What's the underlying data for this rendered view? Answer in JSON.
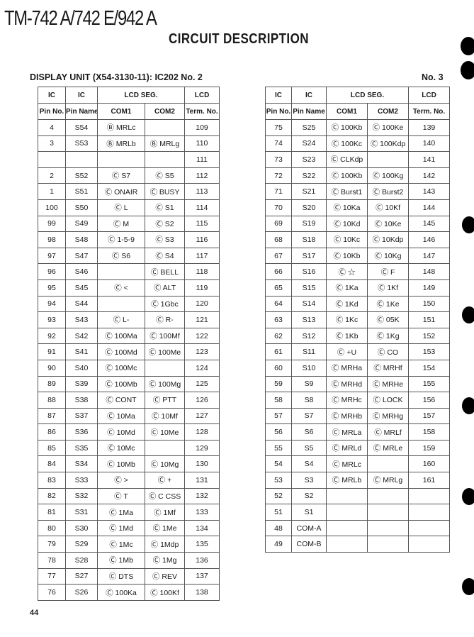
{
  "header": {
    "model": "TM-742 A/742 E/942 A",
    "section": "CIRCUIT DESCRIPTION"
  },
  "left_caption": "DISPLAY UNIT (X54-3130-11): IC202 No. 2",
  "right_caption": "No. 3",
  "columns": {
    "ic": "IC",
    "pin_no": "Pin No.",
    "pin_name": "Pin Name",
    "lcd_seg": "LCD SEG.",
    "com1": "COM1",
    "com2": "COM2",
    "lcd": "LCD",
    "term_no": "Term. No."
  },
  "left_rows": [
    [
      "4",
      "S54",
      "Ⓑ MRLc",
      "",
      "109"
    ],
    [
      "3",
      "S53",
      "Ⓑ MRLb",
      "Ⓑ MRLg",
      "110"
    ],
    [
      "",
      "",
      "",
      "",
      "111"
    ],
    [
      "2",
      "S52",
      "Ⓒ S7",
      "Ⓒ S5",
      "112"
    ],
    [
      "1",
      "S51",
      "Ⓒ ONAIR",
      "Ⓒ BUSY",
      "113"
    ],
    [
      "100",
      "S50",
      "Ⓒ L",
      "Ⓒ S1",
      "114"
    ],
    [
      "99",
      "S49",
      "Ⓒ M",
      "Ⓒ S2",
      "115"
    ],
    [
      "98",
      "S48",
      "Ⓒ 1-5-9",
      "Ⓒ S3",
      "116"
    ],
    [
      "97",
      "S47",
      "Ⓒ S6",
      "Ⓒ S4",
      "117"
    ],
    [
      "96",
      "S46",
      "",
      "Ⓒ BELL",
      "118"
    ],
    [
      "95",
      "S45",
      "Ⓒ <",
      "Ⓒ ALT",
      "119"
    ],
    [
      "94",
      "S44",
      "",
      "Ⓒ 1Gbc",
      "120"
    ],
    [
      "93",
      "S43",
      "Ⓒ L-",
      "Ⓒ R-",
      "121"
    ],
    [
      "92",
      "S42",
      "Ⓒ 100Ma",
      "Ⓒ 100Mf",
      "122"
    ],
    [
      "91",
      "S41",
      "Ⓒ 100Md",
      "Ⓒ 100Me",
      "123"
    ],
    [
      "90",
      "S40",
      "Ⓒ 100Mc",
      "",
      "124"
    ],
    [
      "89",
      "S39",
      "Ⓒ 100Mb",
      "Ⓒ 100Mg",
      "125"
    ],
    [
      "88",
      "S38",
      "Ⓒ CONT",
      "Ⓒ PTT",
      "126"
    ],
    [
      "87",
      "S37",
      "Ⓒ 10Ma",
      "Ⓒ 10Mf",
      "127"
    ],
    [
      "86",
      "S36",
      "Ⓒ 10Md",
      "Ⓒ 10Me",
      "128"
    ],
    [
      "85",
      "S35",
      "Ⓒ 10Mc",
      "",
      "129"
    ],
    [
      "84",
      "S34",
      "Ⓒ 10Mb",
      "Ⓒ 10Mg",
      "130"
    ],
    [
      "83",
      "S33",
      "Ⓒ >",
      "Ⓒ +",
      "131"
    ],
    [
      "82",
      "S32",
      "Ⓒ T",
      "Ⓒ C CSS",
      "132"
    ],
    [
      "81",
      "S31",
      "Ⓒ 1Ma",
      "Ⓒ 1Mf",
      "133"
    ],
    [
      "80",
      "S30",
      "Ⓒ 1Md",
      "Ⓒ 1Me",
      "134"
    ],
    [
      "79",
      "S29",
      "Ⓒ 1Mc",
      "Ⓒ 1Mdp",
      "135"
    ],
    [
      "78",
      "S28",
      "Ⓒ 1Mb",
      "Ⓒ 1Mg",
      "136"
    ],
    [
      "77",
      "S27",
      "Ⓒ DTS",
      "Ⓒ REV",
      "137"
    ],
    [
      "76",
      "S26",
      "Ⓒ 100Ka",
      "Ⓒ 100Kf",
      "138"
    ]
  ],
  "right_rows": [
    [
      "75",
      "S25",
      "Ⓒ 100Kb",
      "Ⓒ 100Ke",
      "139"
    ],
    [
      "74",
      "S24",
      "Ⓒ 100Kc",
      "Ⓒ 100Kdp",
      "140"
    ],
    [
      "73",
      "S23",
      "Ⓒ CLKdp",
      "",
      "141"
    ],
    [
      "72",
      "S22",
      "Ⓒ 100Kb",
      "Ⓒ 100Kg",
      "142"
    ],
    [
      "71",
      "S21",
      "Ⓒ Burst1",
      "Ⓒ Burst2",
      "143"
    ],
    [
      "70",
      "S20",
      "Ⓒ 10Ka",
      "Ⓒ 10Kf",
      "144"
    ],
    [
      "69",
      "S19",
      "Ⓒ 10Kd",
      "Ⓒ 10Ke",
      "145"
    ],
    [
      "68",
      "S18",
      "Ⓒ 10Kc",
      "Ⓒ 10Kdp",
      "146"
    ],
    [
      "67",
      "S17",
      "Ⓒ 10Kb",
      "Ⓒ 10Kg",
      "147"
    ],
    [
      "66",
      "S16",
      "Ⓒ ☆",
      "Ⓒ F",
      "148"
    ],
    [
      "65",
      "S15",
      "Ⓒ 1Ka",
      "Ⓒ 1Kf",
      "149"
    ],
    [
      "64",
      "S14",
      "Ⓒ 1Kd",
      "Ⓒ 1Ke",
      "150"
    ],
    [
      "63",
      "S13",
      "Ⓒ 1Kc",
      "Ⓒ 05K",
      "151"
    ],
    [
      "62",
      "S12",
      "Ⓒ 1Kb",
      "Ⓒ 1Kg",
      "152"
    ],
    [
      "61",
      "S11",
      "Ⓒ +U",
      "Ⓒ CO",
      "153"
    ],
    [
      "60",
      "S10",
      "Ⓒ MRHa",
      "Ⓒ MRHf",
      "154"
    ],
    [
      "59",
      "S9",
      "Ⓒ MRHd",
      "Ⓒ MRHe",
      "155"
    ],
    [
      "58",
      "S8",
      "Ⓒ MRHc",
      "Ⓒ LOCK",
      "156"
    ],
    [
      "57",
      "S7",
      "Ⓒ MRHb",
      "Ⓒ MRHg",
      "157"
    ],
    [
      "56",
      "S6",
      "Ⓒ MRLa",
      "Ⓒ MRLf",
      "158"
    ],
    [
      "55",
      "S5",
      "Ⓒ MRLd",
      "Ⓒ MRLe",
      "159"
    ],
    [
      "54",
      "S4",
      "Ⓒ MRLc",
      "",
      "160"
    ],
    [
      "53",
      "S3",
      "Ⓒ MRLb",
      "Ⓒ MRLg",
      "161"
    ],
    [
      "52",
      "S2",
      "",
      "",
      ""
    ],
    [
      "51",
      "S1",
      "",
      "",
      ""
    ],
    [
      "48",
      "COM-A",
      "",
      "",
      ""
    ],
    [
      "49",
      "COM-B",
      "",
      "",
      ""
    ]
  ],
  "page_number": "44"
}
